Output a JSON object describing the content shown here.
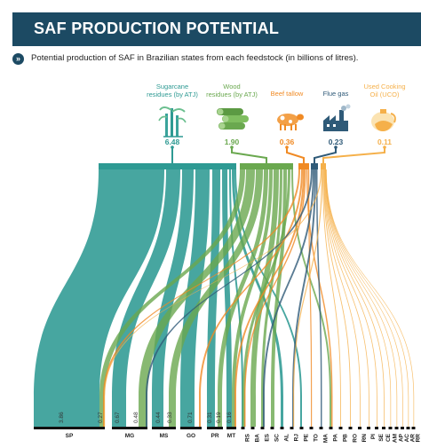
{
  "header": {
    "title": "SAF PRODUCTION POTENTIAL"
  },
  "subtitle": "Potential production of SAF in Brazilian states from each feedstock (in billions of litres).",
  "colors": {
    "header_bg": "#1c4a63",
    "sugarcane": "#2e9a93",
    "wood": "#6aa84f",
    "tallow": "#f08a24",
    "flue": "#2f5a78",
    "uco": "#f5b04a"
  },
  "chart_data": {
    "type": "sankey",
    "unit": "billions of litres",
    "feedstocks": [
      {
        "key": "sugarcane",
        "name_lines": [
          "Sugarcane",
          "residues (by ATJ)"
        ],
        "value": 6.48,
        "value_label": "6.48",
        "icon": "sugarcane-icon"
      },
      {
        "key": "wood",
        "name_lines": [
          "Wood",
          "residues (by ATJ)"
        ],
        "value": 1.9,
        "value_label": "1.90",
        "icon": "wood-logs-icon"
      },
      {
        "key": "tallow",
        "name_lines": [
          "Beef tallow"
        ],
        "value": 0.36,
        "value_label": "0.36",
        "icon": "cow-icon"
      },
      {
        "key": "flue",
        "name_lines": [
          "Flue gas"
        ],
        "value": 0.23,
        "value_label": "0.23",
        "icon": "factory-icon"
      },
      {
        "key": "uco",
        "name_lines": [
          "Used Cooking",
          "Oil (UCO)"
        ],
        "value": 0.11,
        "value_label": "0.11",
        "icon": "oil-jug-icon"
      }
    ],
    "states": [
      "SP",
      "MG",
      "MS",
      "GO",
      "PR",
      "MT",
      "RS",
      "BA",
      "ES",
      "SC",
      "AL",
      "RJ",
      "PE",
      "TO",
      "MA",
      "PA",
      "PB",
      "RO",
      "RN",
      "PI",
      "SE",
      "CE",
      "AM",
      "AP",
      "AC",
      "AR",
      "RR"
    ],
    "bar_labels": [
      {
        "state": "SP",
        "feedstock": "sugarcane",
        "value": 3.86,
        "label": "3.86"
      },
      {
        "state": "SP",
        "feedstock": "wood",
        "value": 0.27,
        "label": "0.27"
      },
      {
        "state": "MG",
        "feedstock": "sugarcane",
        "value": 0.67,
        "label": "0.67"
      },
      {
        "state": "MG",
        "feedstock": "wood",
        "value": 0.48,
        "label": "0.48"
      },
      {
        "state": "MS",
        "feedstock": "sugarcane",
        "value": 0.44,
        "label": "0.44"
      },
      {
        "state": "MS",
        "feedstock": "wood",
        "value": 0.33,
        "label": "0.33"
      },
      {
        "state": "GO",
        "feedstock": "sugarcane",
        "value": 0.71,
        "label": "0.71"
      },
      {
        "state": "PR",
        "feedstock": "sugarcane",
        "value": 0.31,
        "label": "0.31"
      },
      {
        "state": "PR",
        "feedstock": "wood",
        "value": 0.19,
        "label": "0.19"
      },
      {
        "state": "MT",
        "feedstock": "sugarcane",
        "value": 0.16,
        "label": "0.16"
      }
    ]
  }
}
